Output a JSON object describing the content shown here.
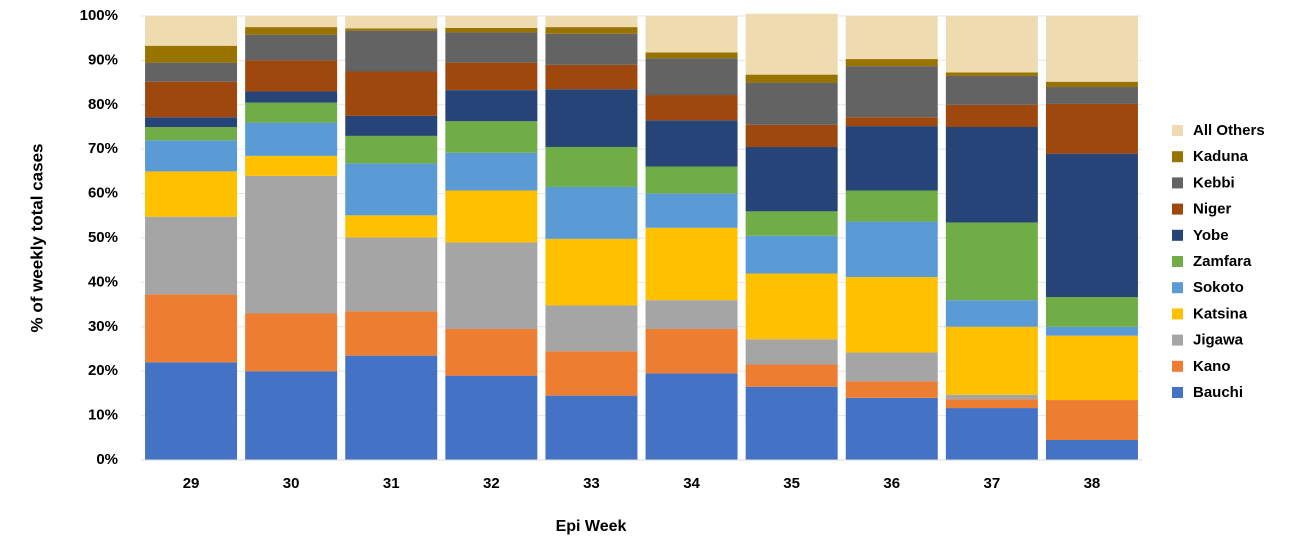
{
  "chart_data": {
    "type": "bar",
    "stacked": true,
    "title": "",
    "xlabel": "Epi Week",
    "ylabel": "% of weekly total cases",
    "ylim": [
      0,
      100
    ],
    "y_ticks": [
      "0%",
      "10%",
      "20%",
      "30%",
      "40%",
      "50%",
      "60%",
      "70%",
      "80%",
      "90%",
      "100%"
    ],
    "categories": [
      "29",
      "30",
      "31",
      "32",
      "33",
      "34",
      "35",
      "36",
      "37",
      "38"
    ],
    "legend_position": "right",
    "series": [
      {
        "name": "Bauchi",
        "color": "#4472C4",
        "values": [
          22,
          20,
          23.5,
          19,
          14.5,
          19.5,
          16.5,
          14,
          11.7,
          4.5
        ]
      },
      {
        "name": "Kano",
        "color": "#ED7D31",
        "values": [
          15.3,
          13,
          10,
          10.5,
          10,
          10,
          5,
          3.7,
          2,
          9
        ]
      },
      {
        "name": "Jigawa",
        "color": "#A5A5A5",
        "values": [
          17.5,
          31,
          16.6,
          19.5,
          10.3,
          6.5,
          5.7,
          6.5,
          1,
          0
        ]
      },
      {
        "name": "Katsina",
        "color": "#FFC000",
        "values": [
          10.2,
          4.5,
          5,
          11.7,
          15,
          16.3,
          14.8,
          17,
          15.3,
          14.5
        ]
      },
      {
        "name": "Sokoto",
        "color": "#5B9BD5",
        "values": [
          7,
          7.5,
          11.7,
          8.5,
          11.7,
          7.7,
          8.5,
          12.5,
          6,
          2
        ]
      },
      {
        "name": "Zamfara",
        "color": "#70AD47",
        "values": [
          3,
          4.5,
          6.2,
          7.1,
          9,
          6.1,
          5.5,
          7,
          17.5,
          6.7
        ]
      },
      {
        "name": "Yobe",
        "color": "#264478",
        "values": [
          2.2,
          2.5,
          4.5,
          7,
          13,
          10.4,
          14.5,
          14.5,
          21.5,
          32.3
        ]
      },
      {
        "name": "Niger",
        "color": "#9E480E",
        "values": [
          8,
          7,
          10,
          6.2,
          5.5,
          5.7,
          5,
          2,
          5,
          11.2
        ]
      },
      {
        "name": "Kebbi",
        "color": "#636363",
        "values": [
          4.3,
          5.8,
          9.2,
          6.8,
          7,
          8.3,
          9.5,
          11.5,
          6.5,
          3.8
        ]
      },
      {
        "name": "Kaduna",
        "color": "#997300",
        "values": [
          3.8,
          1.7,
          0.5,
          1,
          1.5,
          1.3,
          1.8,
          1.6,
          0.8,
          1.2
        ]
      },
      {
        "name": "All Others",
        "color": "#EEDBB0",
        "values": [
          6.7,
          2.5,
          2.8,
          2.7,
          2.5,
          8.2,
          13.7,
          9.7,
          12.7,
          14.8
        ]
      }
    ]
  }
}
